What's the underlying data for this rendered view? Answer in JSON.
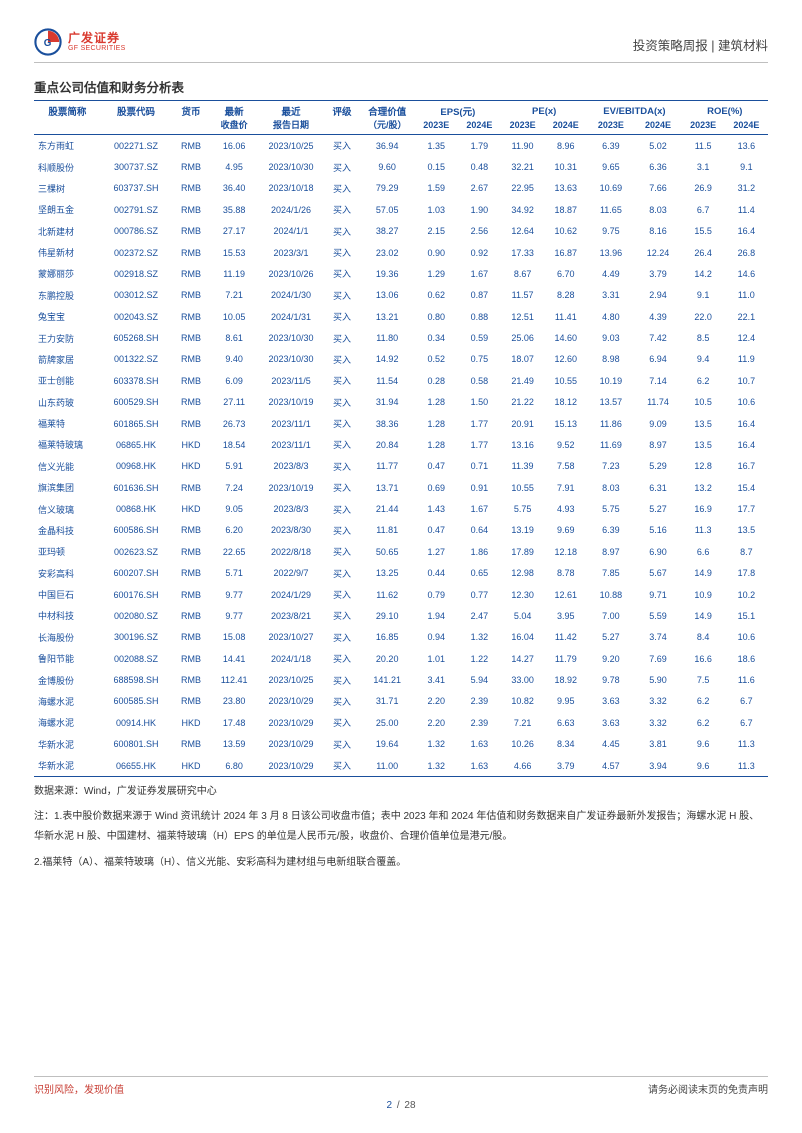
{
  "header": {
    "logo_cn": "广发证券",
    "logo_en": "GF SECURITIES",
    "right": "投资策略周报 | 建筑材料"
  },
  "section_title": "重点公司估值和财务分析表",
  "table": {
    "col_widths_pct": [
      8.5,
      9,
      5,
      6,
      8.5,
      4.5,
      7,
      5.5,
      5.5,
      5.5,
      5.5,
      6,
      6,
      5.5,
      5.5
    ],
    "group_headers": [
      {
        "label": "股票简称",
        "span": 1
      },
      {
        "label": "股票代码",
        "span": 1
      },
      {
        "label": "货币",
        "span": 1
      },
      {
        "label": "最新",
        "span": 1
      },
      {
        "label": "最近",
        "span": 1
      },
      {
        "label": "评级",
        "span": 1
      },
      {
        "label": "合理价值",
        "span": 1
      },
      {
        "label": "EPS(元)",
        "span": 2
      },
      {
        "label": "PE(x)",
        "span": 2
      },
      {
        "label": "EV/EBITDA(x)",
        "span": 2
      },
      {
        "label": "ROE(%)",
        "span": 2
      }
    ],
    "sub_headers": [
      "",
      "",
      "",
      "收盘价",
      "报告日期",
      "",
      "（元/股）",
      "2023E",
      "2024E",
      "2023E",
      "2024E",
      "2023E",
      "2024E",
      "2023E",
      "2024E"
    ],
    "rows": [
      [
        "东方雨虹",
        "002271.SZ",
        "RMB",
        "16.06",
        "2023/10/25",
        "买入",
        "36.94",
        "1.35",
        "1.79",
        "11.90",
        "8.96",
        "6.39",
        "5.02",
        "11.5",
        "13.6"
      ],
      [
        "科顺股份",
        "300737.SZ",
        "RMB",
        "4.95",
        "2023/10/30",
        "买入",
        "9.60",
        "0.15",
        "0.48",
        "32.21",
        "10.31",
        "9.65",
        "6.36",
        "3.1",
        "9.1"
      ],
      [
        "三棵树",
        "603737.SH",
        "RMB",
        "36.40",
        "2023/10/18",
        "买入",
        "79.29",
        "1.59",
        "2.67",
        "22.95",
        "13.63",
        "10.69",
        "7.66",
        "26.9",
        "31.2"
      ],
      [
        "坚朗五金",
        "002791.SZ",
        "RMB",
        "35.88",
        "2024/1/26",
        "买入",
        "57.05",
        "1.03",
        "1.90",
        "34.92",
        "18.87",
        "11.65",
        "8.03",
        "6.7",
        "11.4"
      ],
      [
        "北新建材",
        "000786.SZ",
        "RMB",
        "27.17",
        "2024/1/1",
        "买入",
        "38.27",
        "2.15",
        "2.56",
        "12.64",
        "10.62",
        "9.75",
        "8.16",
        "15.5",
        "16.4"
      ],
      [
        "伟星新材",
        "002372.SZ",
        "RMB",
        "15.53",
        "2023/3/1",
        "买入",
        "23.02",
        "0.90",
        "0.92",
        "17.33",
        "16.87",
        "13.96",
        "12.24",
        "26.4",
        "26.8"
      ],
      [
        "蒙娜丽莎",
        "002918.SZ",
        "RMB",
        "11.19",
        "2023/10/26",
        "买入",
        "19.36",
        "1.29",
        "1.67",
        "8.67",
        "6.70",
        "4.49",
        "3.79",
        "14.2",
        "14.6"
      ],
      [
        "东鹏控股",
        "003012.SZ",
        "RMB",
        "7.21",
        "2024/1/30",
        "买入",
        "13.06",
        "0.62",
        "0.87",
        "11.57",
        "8.28",
        "3.31",
        "2.94",
        "9.1",
        "11.0"
      ],
      [
        "兔宝宝",
        "002043.SZ",
        "RMB",
        "10.05",
        "2024/1/31",
        "买入",
        "13.21",
        "0.80",
        "0.88",
        "12.51",
        "11.41",
        "4.80",
        "4.39",
        "22.0",
        "22.1"
      ],
      [
        "王力安防",
        "605268.SH",
        "RMB",
        "8.61",
        "2023/10/30",
        "买入",
        "11.80",
        "0.34",
        "0.59",
        "25.06",
        "14.60",
        "9.03",
        "7.42",
        "8.5",
        "12.4"
      ],
      [
        "箭牌家居",
        "001322.SZ",
        "RMB",
        "9.40",
        "2023/10/30",
        "买入",
        "14.92",
        "0.52",
        "0.75",
        "18.07",
        "12.60",
        "8.98",
        "6.94",
        "9.4",
        "11.9"
      ],
      [
        "亚士创能",
        "603378.SH",
        "RMB",
        "6.09",
        "2023/11/5",
        "买入",
        "11.54",
        "0.28",
        "0.58",
        "21.49",
        "10.55",
        "10.19",
        "7.14",
        "6.2",
        "10.7"
      ],
      [
        "山东药玻",
        "600529.SH",
        "RMB",
        "27.11",
        "2023/10/19",
        "买入",
        "31.94",
        "1.28",
        "1.50",
        "21.22",
        "18.12",
        "13.57",
        "11.74",
        "10.5",
        "10.6"
      ],
      [
        "福莱特",
        "601865.SH",
        "RMB",
        "26.73",
        "2023/11/1",
        "买入",
        "38.36",
        "1.28",
        "1.77",
        "20.91",
        "15.13",
        "11.86",
        "9.09",
        "13.5",
        "16.4"
      ],
      [
        "福莱特玻璃",
        "06865.HK",
        "HKD",
        "18.54",
        "2023/11/1",
        "买入",
        "20.84",
        "1.28",
        "1.77",
        "13.16",
        "9.52",
        "11.69",
        "8.97",
        "13.5",
        "16.4"
      ],
      [
        "信义光能",
        "00968.HK",
        "HKD",
        "5.91",
        "2023/8/3",
        "买入",
        "11.77",
        "0.47",
        "0.71",
        "11.39",
        "7.58",
        "7.23",
        "5.29",
        "12.8",
        "16.7"
      ],
      [
        "旗滨集团",
        "601636.SH",
        "RMB",
        "7.24",
        "2023/10/19",
        "买入",
        "13.71",
        "0.69",
        "0.91",
        "10.55",
        "7.91",
        "8.03",
        "6.31",
        "13.2",
        "15.4"
      ],
      [
        "信义玻璃",
        "00868.HK",
        "HKD",
        "9.05",
        "2023/8/3",
        "买入",
        "21.44",
        "1.43",
        "1.67",
        "5.75",
        "4.93",
        "5.75",
        "5.27",
        "16.9",
        "17.7"
      ],
      [
        "金晶科技",
        "600586.SH",
        "RMB",
        "6.20",
        "2023/8/30",
        "买入",
        "11.81",
        "0.47",
        "0.64",
        "13.19",
        "9.69",
        "6.39",
        "5.16",
        "11.3",
        "13.5"
      ],
      [
        "亚玛顿",
        "002623.SZ",
        "RMB",
        "22.65",
        "2022/8/18",
        "买入",
        "50.65",
        "1.27",
        "1.86",
        "17.89",
        "12.18",
        "8.97",
        "6.90",
        "6.6",
        "8.7"
      ],
      [
        "安彩高科",
        "600207.SH",
        "RMB",
        "5.71",
        "2022/9/7",
        "买入",
        "13.25",
        "0.44",
        "0.65",
        "12.98",
        "8.78",
        "7.85",
        "5.67",
        "14.9",
        "17.8"
      ],
      [
        "中国巨石",
        "600176.SH",
        "RMB",
        "9.77",
        "2024/1/29",
        "买入",
        "11.62",
        "0.79",
        "0.77",
        "12.30",
        "12.61",
        "10.88",
        "9.71",
        "10.9",
        "10.2"
      ],
      [
        "中材科技",
        "002080.SZ",
        "RMB",
        "9.77",
        "2023/8/21",
        "买入",
        "29.10",
        "1.94",
        "2.47",
        "5.04",
        "3.95",
        "7.00",
        "5.59",
        "14.9",
        "15.1"
      ],
      [
        "长海股份",
        "300196.SZ",
        "RMB",
        "15.08",
        "2023/10/27",
        "买入",
        "16.85",
        "0.94",
        "1.32",
        "16.04",
        "11.42",
        "5.27",
        "3.74",
        "8.4",
        "10.6"
      ],
      [
        "鲁阳节能",
        "002088.SZ",
        "RMB",
        "14.41",
        "2024/1/18",
        "买入",
        "20.20",
        "1.01",
        "1.22",
        "14.27",
        "11.79",
        "9.20",
        "7.69",
        "16.6",
        "18.6"
      ],
      [
        "金博股份",
        "688598.SH",
        "RMB",
        "112.41",
        "2023/10/25",
        "买入",
        "141.21",
        "3.41",
        "5.94",
        "33.00",
        "18.92",
        "9.78",
        "5.90",
        "7.5",
        "11.6"
      ],
      [
        "海螺水泥",
        "600585.SH",
        "RMB",
        "23.80",
        "2023/10/29",
        "买入",
        "31.71",
        "2.20",
        "2.39",
        "10.82",
        "9.95",
        "3.63",
        "3.32",
        "6.2",
        "6.7"
      ],
      [
        "海螺水泥",
        "00914.HK",
        "HKD",
        "17.48",
        "2023/10/29",
        "买入",
        "25.00",
        "2.20",
        "2.39",
        "7.21",
        "6.63",
        "3.63",
        "3.32",
        "6.2",
        "6.7"
      ],
      [
        "华新水泥",
        "600801.SH",
        "RMB",
        "13.59",
        "2023/10/29",
        "买入",
        "19.64",
        "1.32",
        "1.63",
        "10.26",
        "8.34",
        "4.45",
        "3.81",
        "9.6",
        "11.3"
      ],
      [
        "华新水泥",
        "06655.HK",
        "HKD",
        "6.80",
        "2023/10/29",
        "买入",
        "11.00",
        "1.32",
        "1.63",
        "4.66",
        "3.79",
        "4.57",
        "3.94",
        "9.6",
        "11.3"
      ]
    ]
  },
  "source": "数据来源：Wind，广发证券发展研究中心",
  "note1": "注：1.表中股价数据来源于 Wind 资讯统计 2024 年 3 月 8 日该公司收盘市值；表中 2023 年和 2024 年估值和财务数据来自广发证券最新外发报告；海螺水泥 H 股、华新水泥 H 股、中国建材、福莱特玻璃（H）EPS 的单位是人民币元/股，收盘价、合理价值单位是港元/股。",
  "note2": "2.福莱特（A）、福莱特玻璃（H）、信义光能、安彩高科为建材组与电新组联合覆盖。",
  "footer": {
    "left": "识别风险，发现价值",
    "right": "请务必阅读末页的免责声明",
    "page_current": "2",
    "page_sep": "/",
    "page_total": "28"
  },
  "colors": {
    "brand_red": "#d93a2f",
    "brand_blue": "#1a4f9c",
    "text": "#333333",
    "rule": "#bfbfbf"
  }
}
